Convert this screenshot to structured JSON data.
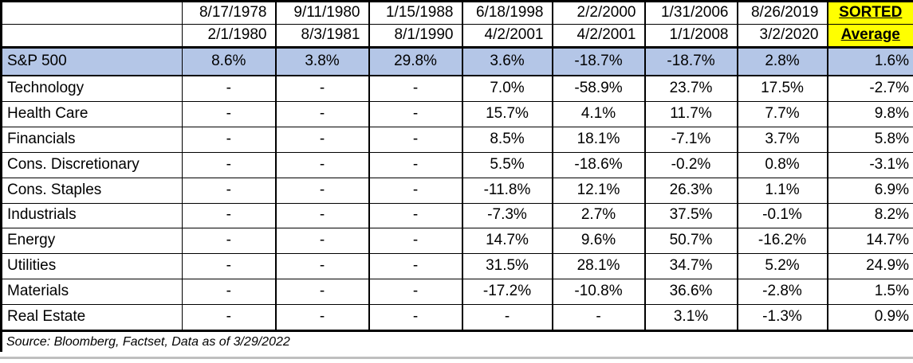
{
  "chart_data": {
    "type": "table",
    "periods": [
      {
        "start": "8/17/1978",
        "end": "2/1/1980"
      },
      {
        "start": "9/11/1980",
        "end": "8/3/1981"
      },
      {
        "start": "1/15/1988",
        "end": "8/1/1990"
      },
      {
        "start": "6/18/1998",
        "end": "4/2/2001"
      },
      {
        "start": "2/2/2000",
        "end": "4/2/2001"
      },
      {
        "start": "1/31/2006",
        "end": "1/1/2008"
      },
      {
        "start": "8/26/2019",
        "end": "3/2/2020"
      },
      {
        "start": "SORTED",
        "end": "Average"
      }
    ],
    "rows": [
      {
        "label": "S&P 500",
        "highlight": true,
        "values": [
          "8.6%",
          "3.8%",
          "29.8%",
          "3.6%",
          "-18.7%",
          "-18.7%",
          "2.8%",
          "1.6%"
        ]
      },
      {
        "label": "Technology",
        "highlight": false,
        "values": [
          "-",
          "-",
          "-",
          "7.0%",
          "-58.9%",
          "23.7%",
          "17.5%",
          "-2.7%"
        ]
      },
      {
        "label": "Health Care",
        "highlight": false,
        "values": [
          "-",
          "-",
          "-",
          "15.7%",
          "4.1%",
          "11.7%",
          "7.7%",
          "9.8%"
        ]
      },
      {
        "label": "Financials",
        "highlight": false,
        "values": [
          "-",
          "-",
          "-",
          "8.5%",
          "18.1%",
          "-7.1%",
          "3.7%",
          "5.8%"
        ]
      },
      {
        "label": "Cons. Discretionary",
        "highlight": false,
        "values": [
          "-",
          "-",
          "-",
          "5.5%",
          "-18.6%",
          "-0.2%",
          "0.8%",
          "-3.1%"
        ]
      },
      {
        "label": "Cons. Staples",
        "highlight": false,
        "values": [
          "-",
          "-",
          "-",
          "-11.8%",
          "12.1%",
          "26.3%",
          "1.1%",
          "6.9%"
        ]
      },
      {
        "label": "Industrials",
        "highlight": false,
        "values": [
          "-",
          "-",
          "-",
          "-7.3%",
          "2.7%",
          "37.5%",
          "-0.1%",
          "8.2%"
        ]
      },
      {
        "label": "Energy",
        "highlight": false,
        "values": [
          "-",
          "-",
          "-",
          "14.7%",
          "9.6%",
          "50.7%",
          "-16.2%",
          "14.7%"
        ]
      },
      {
        "label": "Utilities",
        "highlight": false,
        "values": [
          "-",
          "-",
          "-",
          "31.5%",
          "28.1%",
          "34.7%",
          "5.2%",
          "24.9%"
        ]
      },
      {
        "label": "Materials",
        "highlight": false,
        "values": [
          "-",
          "-",
          "-",
          "-17.2%",
          "-10.8%",
          "36.6%",
          "-2.8%",
          "1.5%"
        ]
      },
      {
        "label": "Real Estate",
        "highlight": false,
        "values": [
          "-",
          "-",
          "-",
          "-",
          "-",
          "3.1%",
          "-1.3%",
          "0.9%"
        ]
      }
    ],
    "source_note": "Source: Bloomberg, Factset, Data as of 3/29/2022"
  },
  "colors": {
    "highlight-row": "#B4C6E7",
    "sorted-header-bg": "#FFFF00",
    "border": "#000000",
    "bottom-strip": "#bfbfbf"
  }
}
